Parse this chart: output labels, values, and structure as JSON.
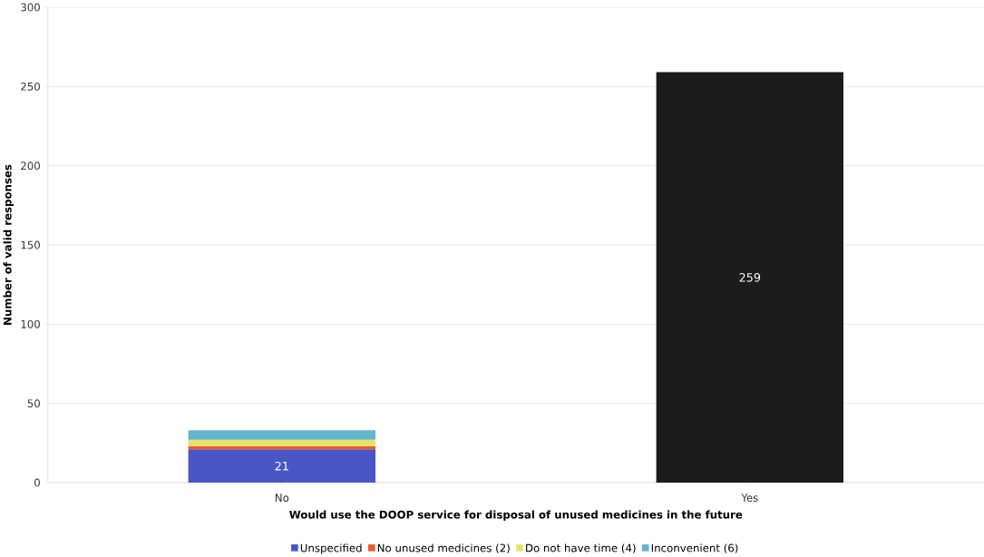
{
  "chart_data": {
    "type": "bar",
    "stacked": true,
    "xlabel": "Would use the DOOP service for disposal of unused medicines in the future",
    "ylabel": "Number of valid responses",
    "categories": [
      "No",
      "Yes"
    ],
    "series": [
      {
        "name": "Unspecified",
        "color": "#4a56c6",
        "values": [
          21,
          null
        ],
        "value_labels": [
          "21",
          null
        ]
      },
      {
        "name": "No unused medicines (2)",
        "color": "#ea5a2a",
        "values": [
          2,
          null
        ]
      },
      {
        "name": "Do not have time (4)",
        "color": "#e6e46a",
        "values": [
          4,
          null
        ]
      },
      {
        "name": "Inconvenient (6)",
        "color": "#64b6cc",
        "values": [
          6,
          null
        ]
      },
      {
        "color": "#1c1c1c",
        "values": [
          null,
          259
        ],
        "value_labels": [
          null,
          "259"
        ]
      }
    ],
    "ylim": [
      0,
      300
    ],
    "yticks": [
      0,
      50,
      100,
      150,
      200,
      250,
      300
    ],
    "grid": "y",
    "legend": "bottom"
  }
}
